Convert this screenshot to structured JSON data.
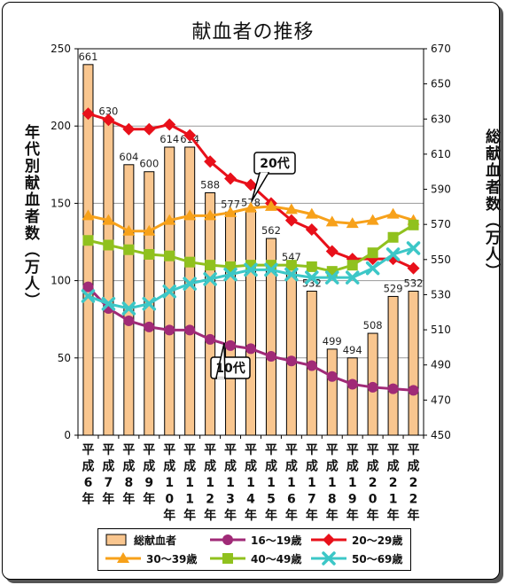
{
  "chart_data": {
    "type": "bar+line",
    "title": "献血者の推移",
    "y_left_label": "年代別献血者数（万人）",
    "y_right_label": "総献血者数（万人）",
    "y_left_range": [
      0,
      250
    ],
    "y_left_ticks": [
      "0",
      "50",
      "100",
      "150",
      "200",
      "250"
    ],
    "y_right_range": [
      450,
      670
    ],
    "y_right_ticks": [
      "450",
      "470",
      "490",
      "510",
      "530",
      "550",
      "570",
      "590",
      "610",
      "630",
      "650",
      "670"
    ],
    "categories": [
      "平成6年",
      "平成7年",
      "平成8年",
      "平成9年",
      "平成10年",
      "平成11年",
      "平成12年",
      "平成13年",
      "平成14年",
      "平成15年",
      "平成16年",
      "平成17年",
      "平成18年",
      "平成19年",
      "平成20年",
      "平成21年",
      "平成22年"
    ],
    "bar_series": {
      "name": "総献血者",
      "color": "#f9c68f",
      "values": [
        661,
        630,
        604,
        600,
        614,
        614,
        588,
        577,
        578,
        562,
        547,
        532,
        499,
        494,
        508,
        529,
        532
      ],
      "labels": [
        "661",
        "630",
        "604",
        "600",
        "614",
        "614",
        "588",
        "577",
        "578",
        "562",
        "547",
        "532",
        "499",
        "494",
        "508",
        "529",
        "532"
      ]
    },
    "line_series": [
      {
        "name": "16～19歳",
        "color": "#a02a77",
        "marker": "circle",
        "values": [
          96,
          82,
          74,
          70,
          68,
          68,
          62,
          58,
          56,
          51,
          48,
          45,
          38,
          33,
          31,
          30,
          29
        ]
      },
      {
        "name": "20～29歳",
        "color": "#e8101a",
        "marker": "diamond",
        "values": [
          208,
          204,
          198,
          198,
          201,
          194,
          177,
          166,
          162,
          150,
          139,
          133,
          119,
          114,
          114,
          114,
          108
        ]
      },
      {
        "name": "30～39歳",
        "color": "#f7a11a",
        "marker": "triangle",
        "values": [
          142,
          139,
          132,
          132,
          139,
          142,
          142,
          144,
          147,
          148,
          146,
          143,
          138,
          137,
          139,
          143,
          139
        ]
      },
      {
        "name": "40～49歳",
        "color": "#90c11e",
        "marker": "square",
        "values": [
          126,
          123,
          120,
          117,
          116,
          112,
          110,
          109,
          110,
          110,
          110,
          109,
          106,
          110,
          118,
          128,
          136
        ]
      },
      {
        "name": "50～69歳",
        "color": "#3cc7c7",
        "marker": "x",
        "values": [
          90,
          85,
          82,
          85,
          93,
          98,
          101,
          104,
          107,
          107,
          104,
          102,
          102,
          102,
          108,
          117,
          121
        ]
      }
    ],
    "annotations": [
      {
        "text": "20代"
      },
      {
        "text": "10代"
      }
    ],
    "grid": true,
    "legend_position": "bottom"
  }
}
